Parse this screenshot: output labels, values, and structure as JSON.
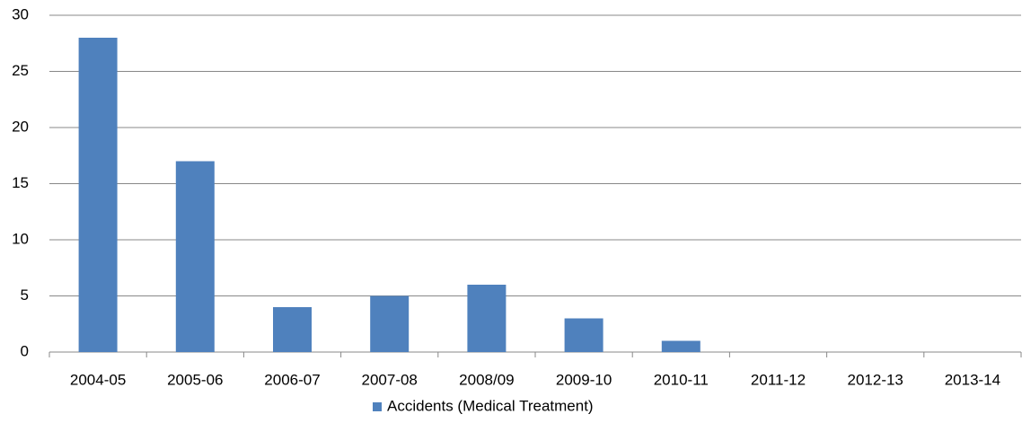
{
  "chart_data": {
    "type": "bar",
    "categories": [
      "2004-05",
      "2005-06",
      "2006-07",
      "2007-08",
      "2008/09",
      "2009-10",
      "2010-11",
      "2011-12",
      "2012-13",
      "2013-14"
    ],
    "series": [
      {
        "name": "Accidents (Medical Treatment)",
        "color": "#4f81bd",
        "values": [
          28,
          17,
          4,
          5,
          6,
          3,
          1,
          0,
          0,
          0
        ]
      }
    ],
    "ylim": [
      0,
      30
    ],
    "yticks": [
      0,
      5,
      10,
      15,
      20,
      25,
      30
    ],
    "grid": true,
    "legend": "bottom"
  }
}
